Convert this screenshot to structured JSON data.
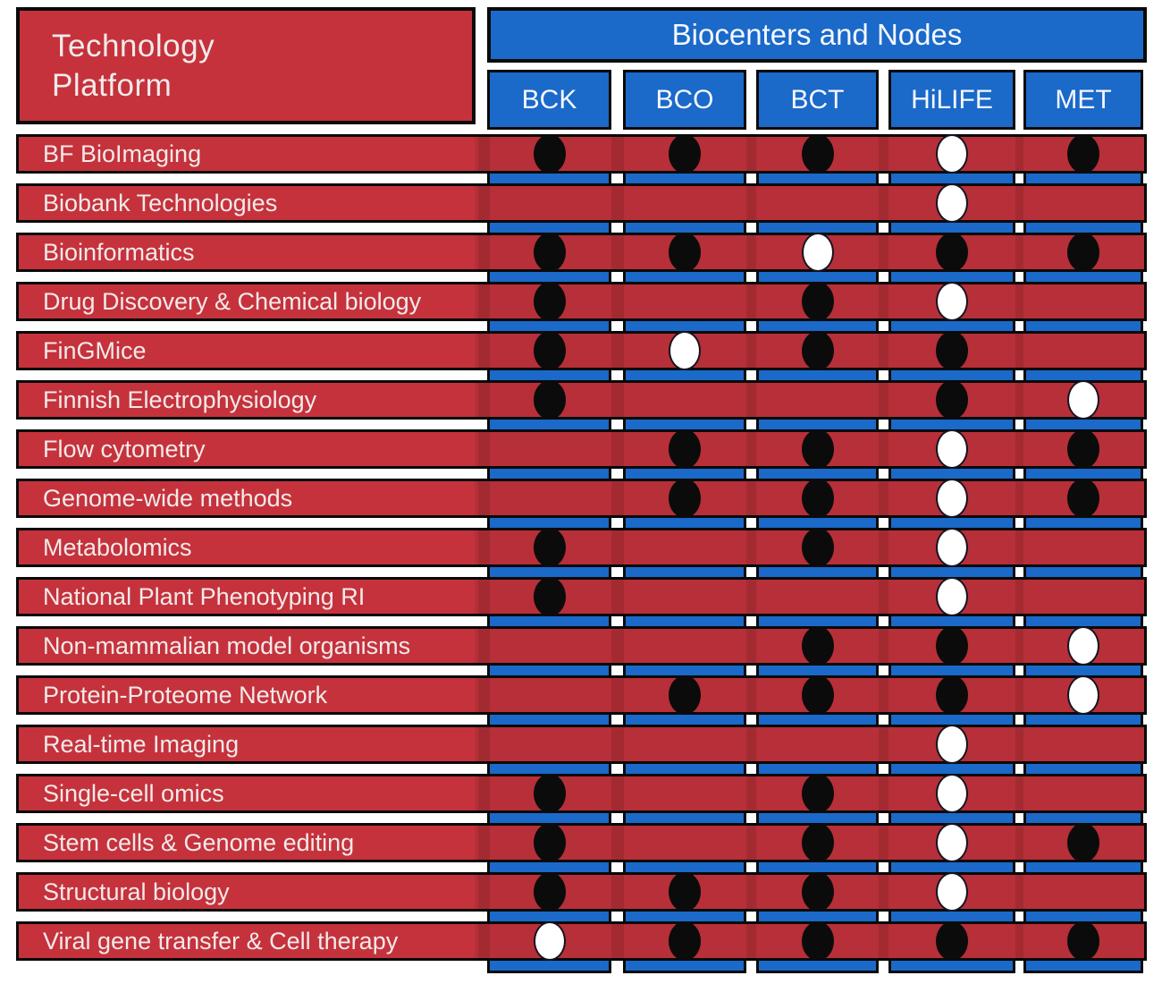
{
  "colors": {
    "red_light": "#C5323C",
    "red_dark": "#B72F38",
    "blue": "#1B69C9",
    "border_black": "#0A0A0A",
    "dot_black": "#0B0B0B",
    "dot_white": "#FFFFFF",
    "text_white": "#F2EAEA"
  },
  "chart_data": {
    "type": "table",
    "title": "Biocenters and Nodes",
    "row_header": {
      "line1": "Technology",
      "line2": "Platform"
    },
    "columns": [
      "BCK",
      "BCO",
      "BCT",
      "HiLIFE",
      "MET"
    ],
    "cell_encoding": {
      "black": "filled black dot",
      "white": "open white dot",
      "null": "no dot"
    },
    "rows": [
      {
        "label": "BF BioImaging",
        "dots": [
          "black",
          "black",
          "black",
          "white",
          "black"
        ]
      },
      {
        "label": "Biobank Technologies",
        "dots": [
          null,
          null,
          null,
          "white",
          null
        ]
      },
      {
        "label": "Bioinformatics",
        "dots": [
          "black",
          "black",
          "white",
          "black",
          "black"
        ]
      },
      {
        "label": "Drug Discovery & Chemical biology",
        "dots": [
          "black",
          null,
          "black",
          "white",
          null
        ]
      },
      {
        "label": "FinGMice",
        "dots": [
          "black",
          "white",
          "black",
          "black",
          null
        ]
      },
      {
        "label": "Finnish Electrophysiology",
        "dots": [
          "black",
          null,
          null,
          "black",
          "white"
        ]
      },
      {
        "label": "Flow cytometry",
        "dots": [
          null,
          "black",
          "black",
          "white",
          "black"
        ]
      },
      {
        "label": "Genome-wide methods",
        "dots": [
          null,
          "black",
          "black",
          "white",
          "black"
        ]
      },
      {
        "label": "Metabolomics",
        "dots": [
          "black",
          null,
          "black",
          "white",
          null
        ]
      },
      {
        "label": "National Plant Phenotyping RI",
        "dots": [
          "black",
          null,
          null,
          "white",
          null
        ]
      },
      {
        "label": "Non-mammalian model organisms",
        "dots": [
          null,
          null,
          "black",
          "black",
          "white"
        ]
      },
      {
        "label": "Protein-Proteome Network",
        "dots": [
          null,
          "black",
          "black",
          "black",
          "white"
        ]
      },
      {
        "label": "Real-time Imaging",
        "dots": [
          null,
          null,
          null,
          "white",
          null
        ]
      },
      {
        "label": "Single-cell omics",
        "dots": [
          "black",
          null,
          "black",
          "white",
          null
        ]
      },
      {
        "label": "Stem cells & Genome editing",
        "dots": [
          "black",
          null,
          "black",
          "white",
          "black"
        ]
      },
      {
        "label": "Structural biology",
        "dots": [
          "black",
          "black",
          "black",
          "white",
          null
        ]
      },
      {
        "label": "Viral gene transfer & Cell therapy",
        "dots": [
          "white",
          "black",
          "black",
          "black",
          "black"
        ]
      }
    ]
  }
}
